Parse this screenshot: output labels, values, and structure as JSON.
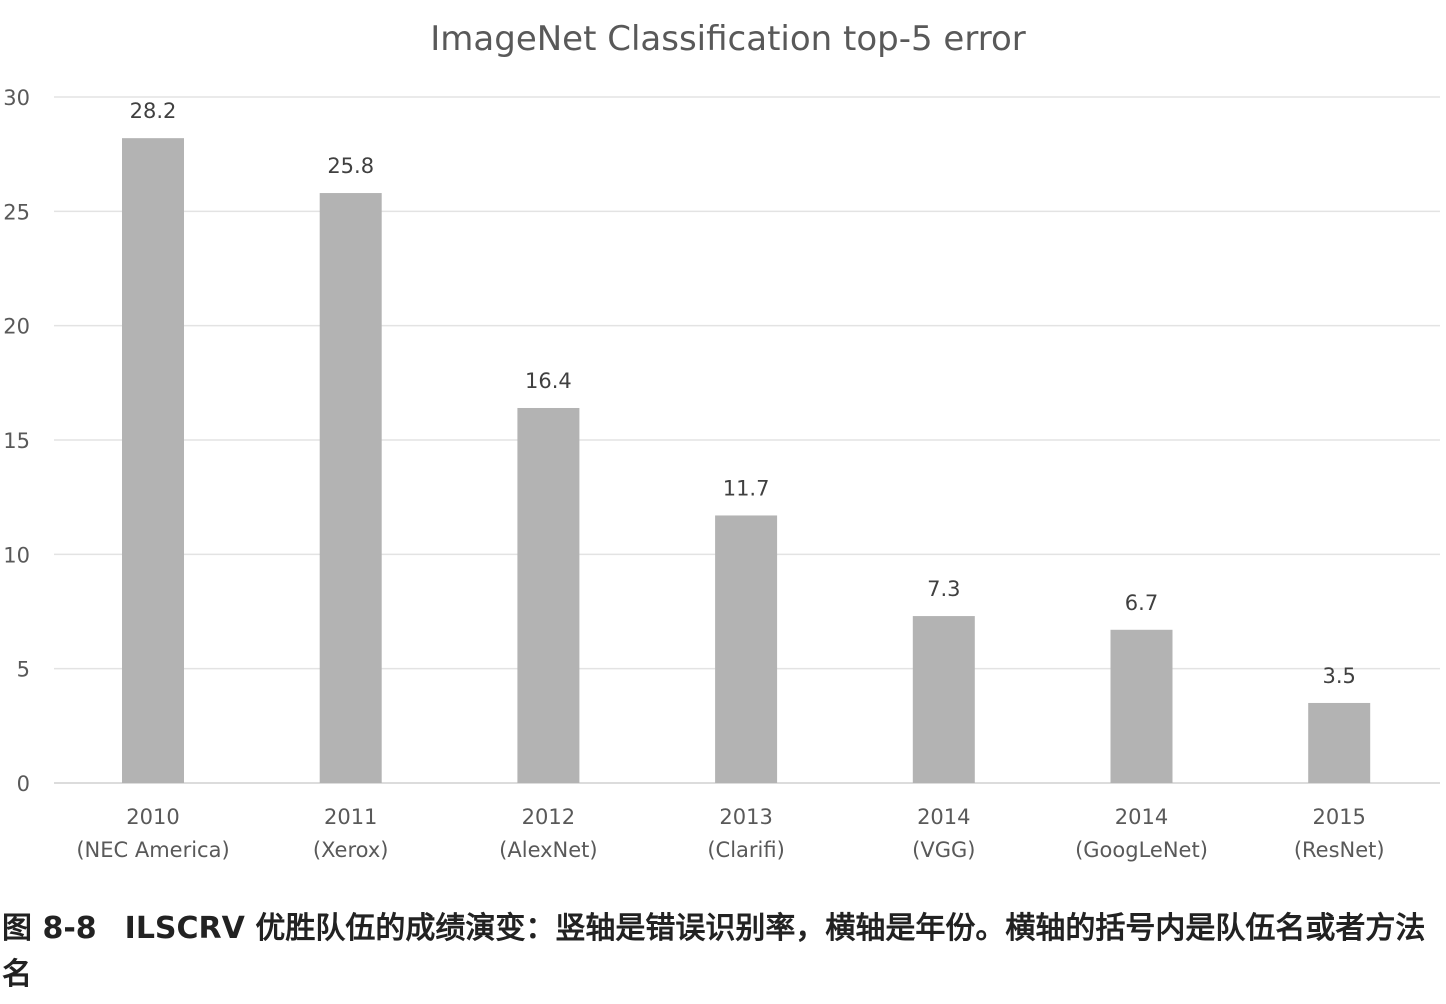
{
  "chart_data": {
    "type": "bar",
    "title": "ImageNet Classification top-5 error",
    "xlabel": "",
    "ylabel": "",
    "ylim": [
      0,
      30
    ],
    "yticks": [
      0,
      5,
      10,
      15,
      20,
      25,
      30
    ],
    "grid": true,
    "legend": "none",
    "bar_color": "#b3b3b3",
    "categories": [
      {
        "year": "2010",
        "team": "(NEC America)"
      },
      {
        "year": "2011",
        "team": "(Xerox)"
      },
      {
        "year": "2012",
        "team": "(AlexNet)"
      },
      {
        "year": "2013",
        "team": "(Clarifi)"
      },
      {
        "year": "2014",
        "team": "(VGG)"
      },
      {
        "year": "2014",
        "team": "(GoogLeNet)"
      },
      {
        "year": "2015",
        "team": "(ResNet)"
      }
    ],
    "values": [
      28.2,
      25.8,
      16.4,
      11.7,
      7.3,
      6.7,
      3.5
    ],
    "data_labels": [
      "28.2",
      "25.8",
      "16.4",
      "11.7",
      "7.3",
      "6.7",
      "3.5"
    ]
  },
  "caption": {
    "number": "图 8-8",
    "text": "ILSCRV 优胜队伍的成绩演变：竖轴是错误识别率，横轴是年份。横轴的括号内是队伍名或者方法名"
  }
}
